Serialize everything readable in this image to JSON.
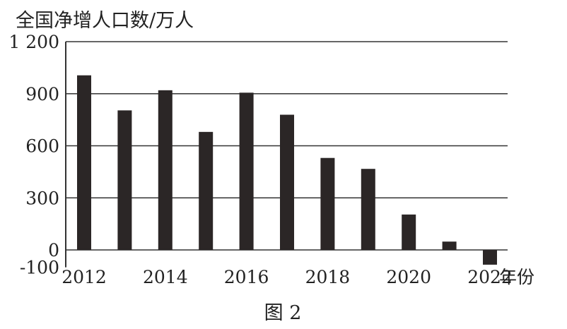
{
  "chart_data": {
    "type": "bar",
    "title": "",
    "ylabel": "全国净增人口数/万人",
    "xlabel": "年份",
    "caption": "图 2",
    "categories": [
      "2012",
      "2013",
      "2014",
      "2015",
      "2016",
      "2017",
      "2018",
      "2019",
      "2020",
      "2021",
      "2022"
    ],
    "values": [
      1006,
      804,
      920,
      680,
      906,
      779,
      530,
      467,
      204,
      48,
      -85
    ],
    "x_tick_labels": [
      "2012",
      "2014",
      "2016",
      "2018",
      "2020",
      "2022"
    ],
    "y_ticks": [
      -100,
      0,
      300,
      600,
      900,
      1200
    ],
    "y_tick_labels": [
      "-100",
      "0",
      "300",
      "600",
      "900",
      "1 200"
    ],
    "ylim": [
      -100,
      1200
    ],
    "grid": true,
    "bar_color": "#2b2626",
    "axis_color": "#333333"
  }
}
